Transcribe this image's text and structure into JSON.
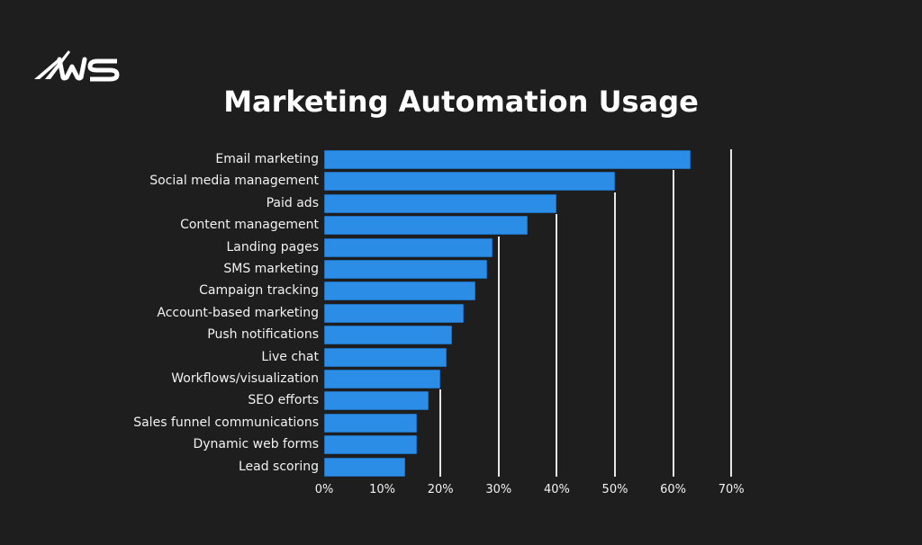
{
  "brand": {
    "logo_text": "WS"
  },
  "chart_data": {
    "type": "bar",
    "orientation": "horizontal",
    "title": "Marketing Automation Usage",
    "xlabel": "",
    "ylabel": "",
    "categories": [
      "Email marketing",
      "Social media management",
      "Paid ads",
      "Content management",
      "Landing pages",
      "SMS marketing",
      "Campaign tracking",
      "Account-based marketing",
      "Push notifications",
      "Live chat",
      "Workflows/visualization",
      "SEO efforts",
      "Sales funnel communications",
      "Dynamic web forms",
      "Lead scoring"
    ],
    "values": [
      63,
      50,
      40,
      35,
      29,
      28,
      26,
      24,
      22,
      21,
      20,
      18,
      16,
      16,
      14
    ],
    "value_unit": "%",
    "xlim": [
      0,
      70
    ],
    "x_ticks": [
      "0%",
      "10%",
      "20%",
      "30%",
      "40%",
      "50%",
      "60%",
      "70%"
    ],
    "grid": true,
    "legend": null,
    "colors": {
      "bar": "#2b8de6",
      "bar_border": "#1f6fba",
      "background": "#1e1e1e",
      "grid": "#e6e6e6",
      "text": "#ffffff"
    }
  }
}
